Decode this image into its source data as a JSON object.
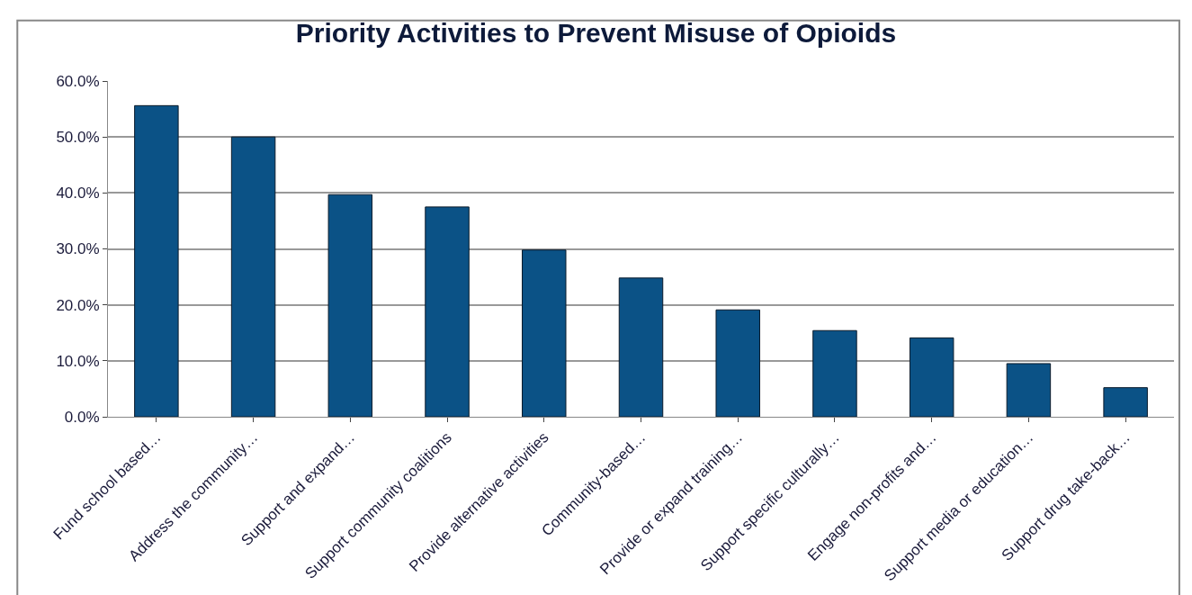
{
  "chart_data": {
    "type": "bar",
    "title": "Priority Activities to Prevent Misuse of Opioids",
    "categories": [
      "Fund school based…",
      "Address the community…",
      "Support and expand…",
      "Support community coalitions",
      "Provide alternative activities",
      "Community-based…",
      "Provide or expand training…",
      "Support specific culturally…",
      "Engage non-profits and…",
      "Support media or education…",
      "Support drug take-back…"
    ],
    "values": [
      55.6,
      50.0,
      39.7,
      37.5,
      29.8,
      24.8,
      19.1,
      15.4,
      14.1,
      9.5,
      5.2
    ],
    "color": "#0b5286",
    "ylim": [
      0,
      60
    ],
    "yticks": [
      {
        "value": 0,
        "label": "0.0%"
      },
      {
        "value": 10,
        "label": "10.0%"
      },
      {
        "value": 20,
        "label": "20.0%"
      },
      {
        "value": 30,
        "label": "30.0%"
      },
      {
        "value": 40,
        "label": "40.0%"
      },
      {
        "value": 50,
        "label": "50.0%"
      },
      {
        "value": 60,
        "label": "60.0%"
      }
    ],
    "grid": "y",
    "legend": false
  }
}
